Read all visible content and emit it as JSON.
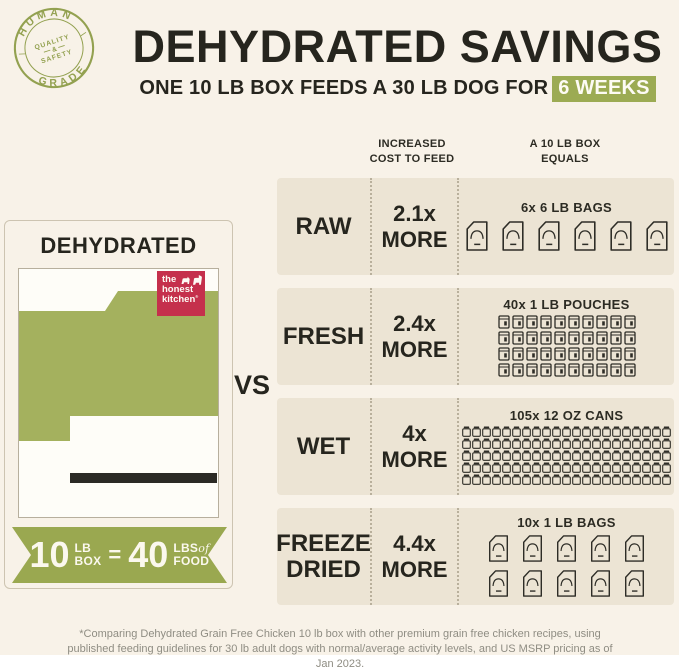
{
  "badge": {
    "top_arc": "HUMAN",
    "bottom_arc": "GRADE",
    "center_line1": "QUALITY",
    "center_line2": "&",
    "center_line3": "SAFETY"
  },
  "header": {
    "title": "DEHYDRATED SAVINGS",
    "subtitle_prefix": "ONE 10 LB BOX FEEDS A 30 LB DOG FOR",
    "subtitle_highlight": "6 WEEKS"
  },
  "column_headers": {
    "cost": "INCREASED\nCOST TO FEED",
    "equals": "A 10 LB BOX\nEQUALS"
  },
  "left_panel": {
    "heading": "DEHYDRATED",
    "logo_line1": "the",
    "logo_line2": "honest",
    "logo_line3": "kitchen",
    "ribbon": {
      "num1": "10",
      "unit1": "LB\nBOX",
      "equals": "=",
      "num2": "40",
      "unit2_top": "LBS",
      "unit2_of": "of",
      "unit2_bottom": "FOOD"
    }
  },
  "vs": "VS",
  "comparison": {
    "rows": [
      {
        "label": "RAW",
        "cost": "2.1x\nMORE",
        "caption": "6x 6 LB BAGS",
        "icon": "bag",
        "count": 6,
        "cols": 6
      },
      {
        "label": "FRESH",
        "cost": "2.4x\nMORE",
        "caption": "40x 1 LB POUCHES",
        "icon": "pouch",
        "count": 40,
        "cols": 10
      },
      {
        "label": "WET",
        "cost": "4x\nMORE",
        "caption": "105x 12 OZ CANS",
        "icon": "can",
        "count": 105,
        "cols": 21
      },
      {
        "label": "FREEZE\nDRIED",
        "cost": "4.4x\nMORE",
        "caption": "10x 1 LB BAGS",
        "icon": "bag",
        "count": 10,
        "cols": 5
      }
    ]
  },
  "chart_data": {
    "type": "table",
    "title": "DEHYDRATED SAVINGS",
    "subtitle": "ONE 10 LB BOX FEEDS A 30 LB DOG FOR 6 WEEKS",
    "categories": [
      "RAW",
      "FRESH",
      "WET",
      "FREEZE DRIED"
    ],
    "series": [
      {
        "name": "INCREASED COST TO FEED (multiplier)",
        "values": [
          2.1,
          2.4,
          4,
          4.4
        ]
      },
      {
        "name": "A 10 LB BOX EQUALS (item count)",
        "values": [
          6,
          40,
          105,
          10
        ]
      },
      {
        "name": "A 10 LB BOX EQUALS (item unit)",
        "values": [
          "6 LB BAGS",
          "1 LB POUCHES",
          "12 OZ CANS",
          "1 LB BAGS"
        ]
      }
    ],
    "annotations": [
      "10 LB BOX = 40 LBS of FOOD"
    ]
  },
  "footnote": "*Comparing Dehydrated Grain Free Chicken 10 lb box with other premium grain free chicken recipes, using published feeding guidelines for 30 lb adult dogs with normal/average activity levels, and US MSRP pricing as of Jan 2023.",
  "colors": {
    "background": "#f8f2e8",
    "row_background": "#ece4d4",
    "olive_green": "#9cab53",
    "brand_red": "#c5304c",
    "dark_text": "#26251e",
    "footnote_text": "#8f8d83"
  }
}
